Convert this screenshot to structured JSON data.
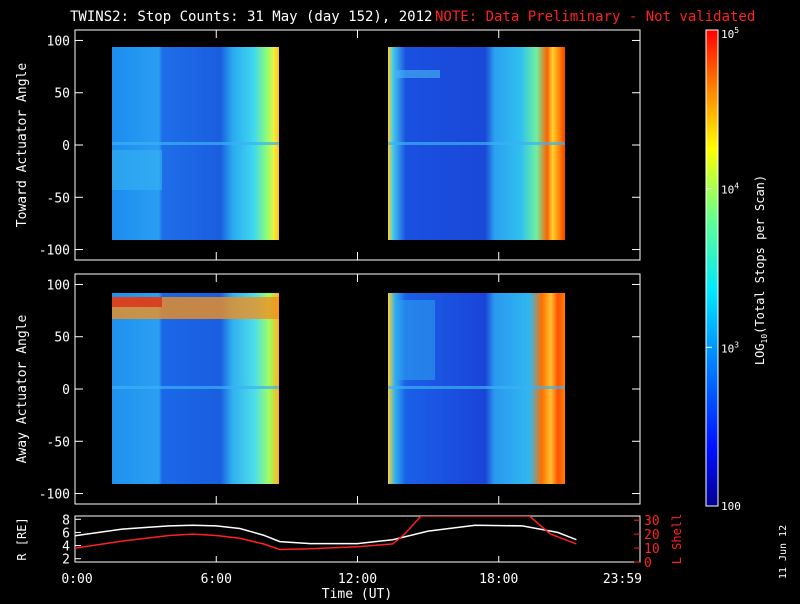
{
  "header": {
    "title": "TWINS2: Stop Counts: 31 May (day 152), 2012",
    "note": "NOTE: Data Preliminary - Not validated"
  },
  "side_date": "11 Jun 12",
  "colors": {
    "background": "#000000",
    "axes": "#ffffff",
    "note": "#ff2020",
    "orbit_r": "#ffffff",
    "orbit_l": "#ff2020"
  },
  "colorbar": {
    "label": "LOG10(Total Stops per Scan)",
    "scale": "log",
    "range": [
      100,
      100000
    ],
    "tick_labels": [
      "100",
      "10^3",
      "10^4",
      "10^5"
    ]
  },
  "chart_data": [
    {
      "type": "heatmap",
      "ylabel": "Toward Actuator Angle",
      "ylim": [
        -110,
        110
      ],
      "yticks": [
        "100",
        "50",
        "0",
        "-50",
        "-100"
      ],
      "xlim": [
        0,
        24
      ],
      "data_blocks_hours": [
        [
          1.0,
          8.6
        ],
        [
          13.7,
          21.3
        ]
      ],
      "data_range_deg": [
        -88,
        90
      ]
    },
    {
      "type": "heatmap",
      "ylabel": "Away Actuator Angle",
      "ylim": [
        -110,
        110
      ],
      "yticks": [
        "100",
        "50",
        "0",
        "-50",
        "-100"
      ],
      "xlim": [
        0,
        24
      ],
      "data_blocks_hours": [
        [
          1.0,
          8.6
        ],
        [
          13.7,
          21.3
        ]
      ],
      "data_range_deg": [
        -88,
        90
      ]
    },
    {
      "type": "line",
      "ylabel_left": "R [RE]",
      "ylabel_right": "L Shell",
      "yticks_left": [
        "8",
        "6",
        "4",
        "2"
      ],
      "yticks_right": [
        "30",
        "20",
        "10",
        "0"
      ],
      "ylim_left": [
        1.5,
        8.5
      ],
      "ylim_right": [
        0,
        33
      ],
      "xlabel": "Time (UT)",
      "xticks": [
        "0:00",
        "6:00",
        "12:00",
        "18:00",
        "23:59"
      ],
      "series": [
        {
          "name": "R [RE]",
          "x": [
            0,
            2,
            4,
            5,
            6,
            7,
            8,
            8.7,
            10,
            12,
            13.5,
            15,
            17,
            19,
            20.5,
            21.3
          ],
          "y": [
            5.5,
            6.5,
            7.0,
            7.1,
            7.0,
            6.6,
            5.6,
            4.6,
            4.3,
            4.3,
            4.9,
            6.2,
            7.1,
            7.0,
            6.0,
            4.9
          ]
        },
        {
          "name": "L Shell",
          "x": [
            0,
            2,
            4,
            5,
            6,
            7,
            8,
            8.7,
            10,
            12,
            13.5,
            14,
            14.7,
            19.3,
            20.2,
            21.3
          ],
          "y": [
            10,
            15,
            19,
            20,
            19,
            17,
            13,
            9,
            9.5,
            11,
            13,
            20,
            33,
            33,
            20,
            13
          ]
        }
      ]
    }
  ]
}
